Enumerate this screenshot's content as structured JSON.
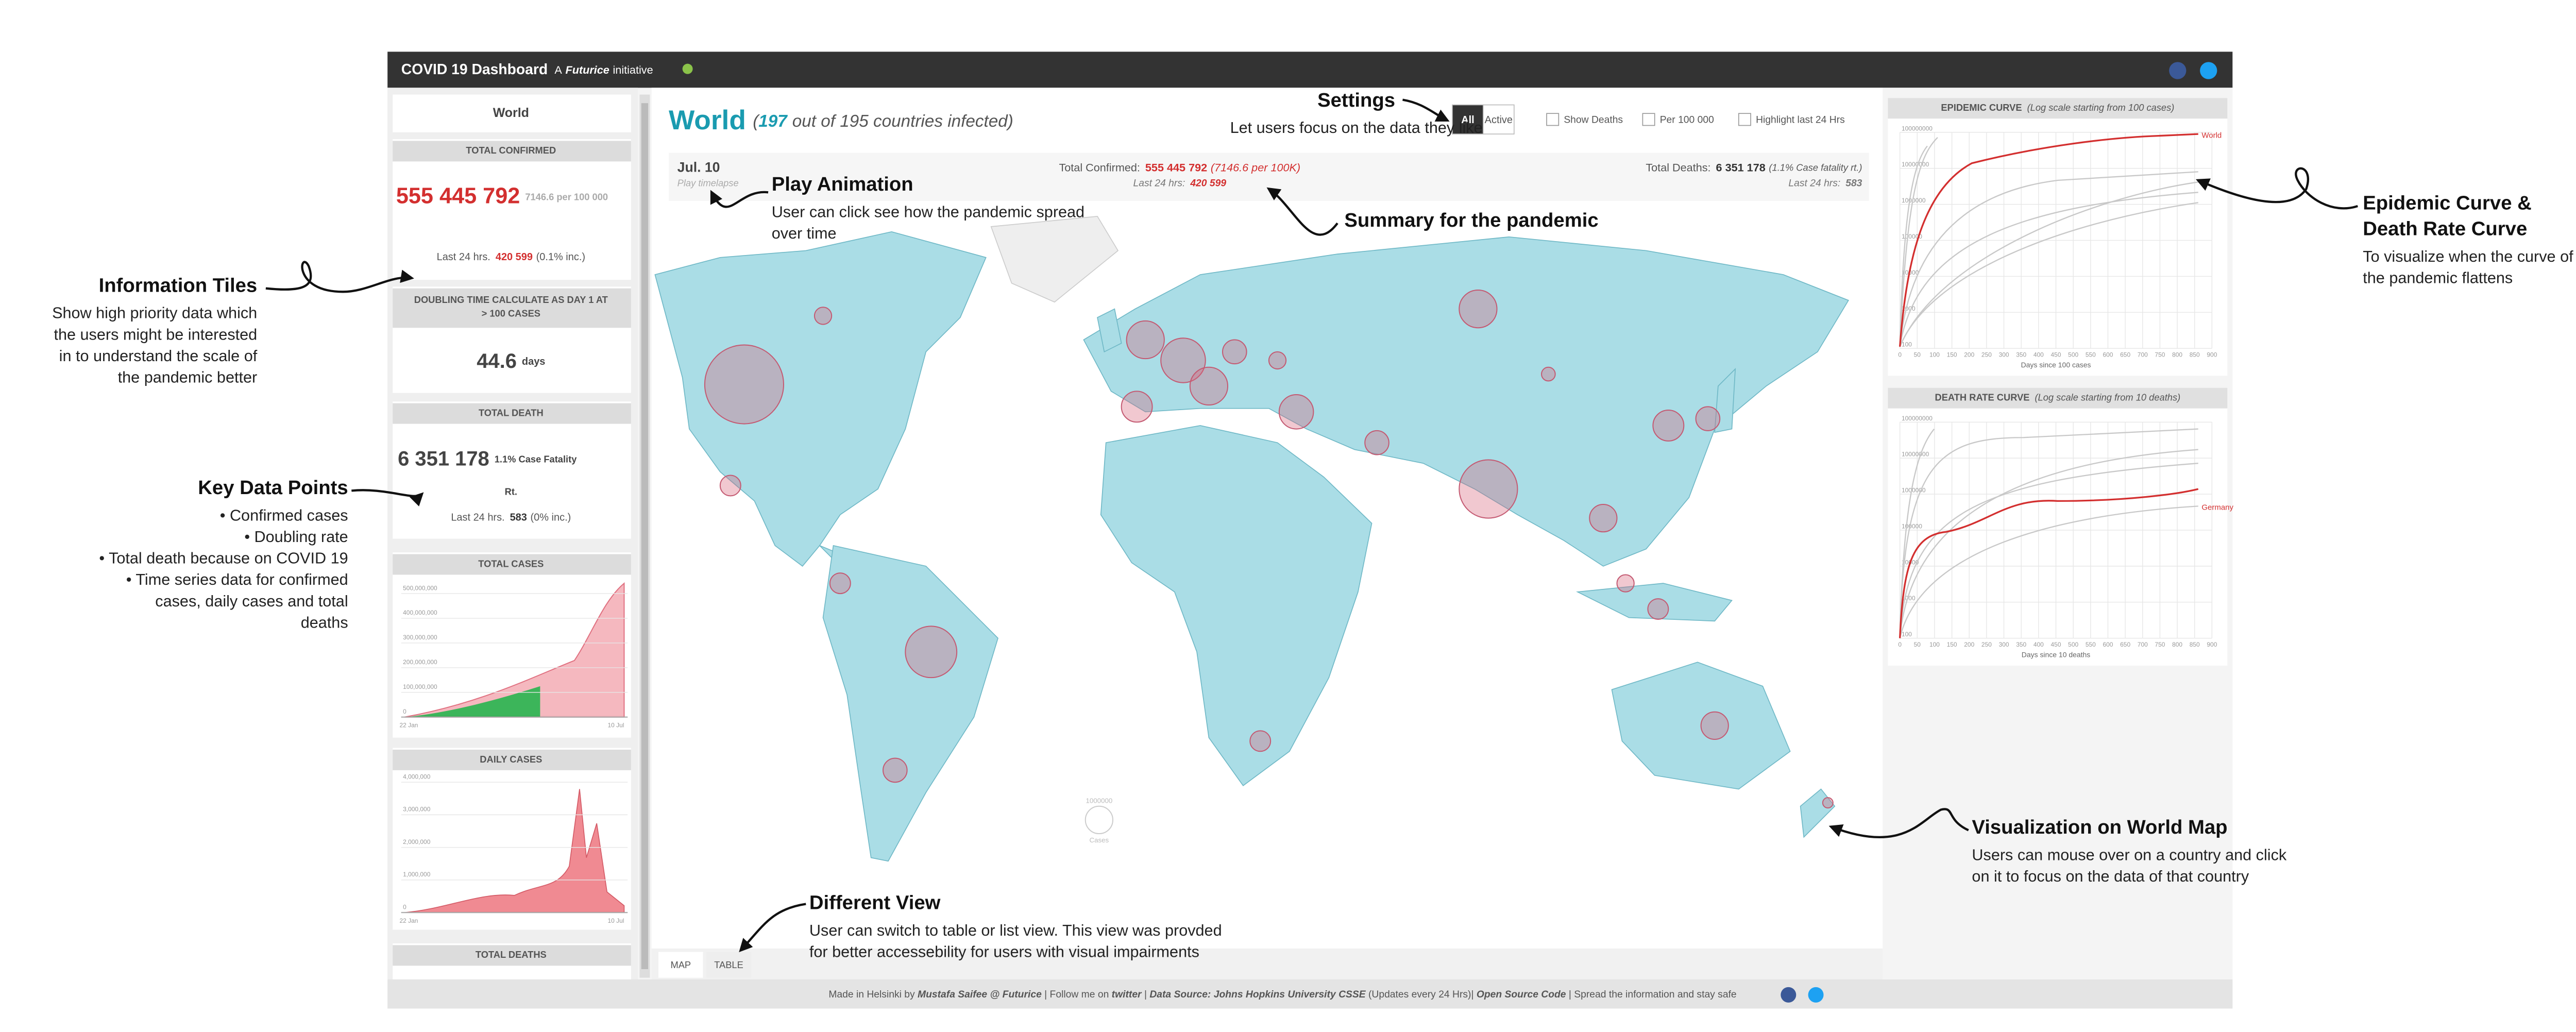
{
  "header": {
    "title": "COVID 19 Dashboard",
    "prefix": "A",
    "brand": "Futurice",
    "suffix": "initiative"
  },
  "sidebar": {
    "region": "World",
    "total_confirmed": {
      "label": "TOTAL CONFIRMED",
      "value": "555 445 792",
      "per": "7146.6 per 100 000",
      "last_prefix": "Last 24 hrs.",
      "last_value": "420 599",
      "last_pct": "(0.1% inc.)"
    },
    "doubling": {
      "label_lines": [
        "DOUBLING TIME CALCULATE AS DAY 1 AT",
        "> 100 CASES"
      ],
      "value": "44.6",
      "unit": "days"
    },
    "total_death": {
      "label": "TOTAL DEATH",
      "value": "6 351 178",
      "note": "1.1% Case Fatality",
      "note2": "Rt.",
      "last_prefix": "Last 24 hrs.",
      "last_value": "583",
      "last_pct": "(0% inc.)"
    },
    "total_cases": {
      "label": "TOTAL CASES",
      "yticks": [
        "500,000,000",
        "400,000,000",
        "300,000,000",
        "200,000,000",
        "100,000,000",
        "0"
      ],
      "x_start": "22 Jan",
      "x_end": "10 Jul"
    },
    "daily_cases": {
      "label": "DAILY CASES",
      "yticks": [
        "4,000,000",
        "3,000,000",
        "2,000,000",
        "1,000,000",
        "0"
      ],
      "x_start": "22 Jan",
      "x_end": "10 Jul"
    },
    "total_deaths": {
      "label": "TOTAL DEATHS"
    }
  },
  "main": {
    "title": "World",
    "infected_open": "(",
    "infected": "197",
    "infected_rest": "out of 195 countries infected)",
    "filters": {
      "buttons": [
        "All",
        "Active"
      ],
      "checkboxes": [
        "Show Deaths",
        "Per 100 000",
        "Highlight last 24 Hrs"
      ]
    },
    "summary": {
      "date": "Jul. 10",
      "play": "Play timelapse",
      "confirmed_label": "Total Confirmed:",
      "confirmed": "555 445 792",
      "confirmed_per": "(7146.6 per 100K)",
      "confirmed_last_label": "Last 24 hrs:",
      "confirmed_last": "420 599",
      "deaths_label": "Total Deaths:",
      "deaths": "6 351 178",
      "deaths_rate": "(1.1% Case fatality rt.)",
      "deaths_last_label": "Last 24 hrs:",
      "deaths_last": "583"
    },
    "map_legend": {
      "value": "1000000",
      "label": "Cases"
    },
    "tabs": [
      "MAP",
      "TABLE"
    ]
  },
  "right": {
    "epidemic": {
      "title": "EPIDEMIC CURVE",
      "note": "(Log scale starting from 100 cases)",
      "highlight": "World",
      "x_label": "Days since 100 cases"
    },
    "death_rate": {
      "title": "DEATH RATE CURVE",
      "note": "(Log scale starting from 10 deaths)",
      "highlight": "Germany",
      "x_label": "Days since 10 deaths"
    },
    "xticks": [
      "0",
      "50",
      "100",
      "150",
      "200",
      "250",
      "300",
      "350",
      "400",
      "450",
      "500",
      "550",
      "600",
      "650",
      "700",
      "750",
      "800",
      "850",
      "900"
    ],
    "yticks": [
      "100000000",
      "10000000",
      "1000000",
      "100000",
      "10000",
      "1000",
      "100"
    ]
  },
  "footer": {
    "parts": [
      "Made in Helsinki by ",
      "Mustafa Saifee @ Futurice",
      " | Follow me on ",
      "twitter",
      " | ",
      "Data Source: Johns Hopkins University CSSE",
      " (Updates every 24 Hrs)| ",
      "Open Source Code",
      " | Spread the information and stay safe"
    ]
  },
  "annotations": [
    {
      "title_lines": [
        "Settings"
      ],
      "lines": [
        "Let users focus on the data they like"
      ]
    },
    {
      "title_lines": [
        "Play Animation"
      ],
      "lines": [
        "User can click see how the pandemic spread",
        "over time"
      ]
    },
    {
      "title_lines": [
        "Summary for the pandemic"
      ],
      "lines": []
    },
    {
      "title_lines": [
        "Information Tiles"
      ],
      "lines": [
        "Show high priority data which",
        "the users might be interested",
        "in to understand the scale of",
        "the pandemic better"
      ]
    },
    {
      "title_lines": [
        "Key Data Points"
      ],
      "lines": [
        "• Confirmed cases",
        "• Doubling rate",
        "• Total death because on COVID 19",
        "• Time series data for confirmed",
        "cases, daily cases and total",
        "deaths"
      ]
    },
    {
      "title_lines": [
        "Different View"
      ],
      "lines": [
        "User can switch to table or list view. This view was provded",
        "for better accessebility for users with visual impairments"
      ]
    },
    {
      "title_lines": [
        "Epidemic Curve &",
        "Death Rate Curve"
      ],
      "lines": [
        "To visualize when the curve of",
        "the pandemic flattens"
      ]
    },
    {
      "title_lines": [
        "Visualization on World Map"
      ],
      "lines": [
        "Users can mouse over on a country and click",
        "on it to focus on the data of that country"
      ]
    }
  ]
}
